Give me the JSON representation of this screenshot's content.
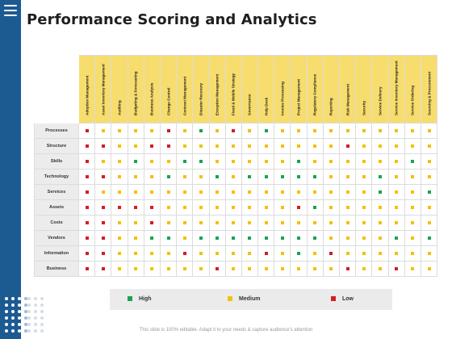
{
  "title": "Performance Scoring and Analytics",
  "columns": [
    "Adoption Management",
    "Asset Inventory Management",
    "Auditing",
    "Budgeting & Forecasting",
    "Business Analysis",
    "Change Control",
    "Contract Management",
    "Disaster Recovery",
    "Exception Management",
    "Fixed & Mobile Strategy",
    "Governance",
    "Help Desk",
    "Invoice Processing",
    "Project Management",
    "Regulatory Compliance",
    "Reporting",
    "Risk Management",
    "Security",
    "Service Delivery",
    "Service Inventory Management",
    "Service Ordering",
    "Sourcing & Procurement"
  ],
  "rows": [
    {
      "label": "Processes",
      "values": [
        "L",
        "M",
        "M",
        "M",
        "M",
        "L",
        "M",
        "H",
        "M",
        "L",
        "M",
        "H",
        "M",
        "M",
        "M",
        "M",
        "M",
        "M",
        "M",
        "M",
        "M",
        "M"
      ]
    },
    {
      "label": "Structure",
      "values": [
        "L",
        "L",
        "M",
        "M",
        "L",
        "L",
        "M",
        "M",
        "M",
        "M",
        "M",
        "M",
        "M",
        "M",
        "M",
        "M",
        "L",
        "M",
        "M",
        "M",
        "M",
        "M"
      ]
    },
    {
      "label": "Skills",
      "values": [
        "L",
        "M",
        "M",
        "H",
        "M",
        "M",
        "H",
        "H",
        "M",
        "M",
        "M",
        "M",
        "M",
        "H",
        "M",
        "M",
        "M",
        "M",
        "M",
        "M",
        "H",
        "M"
      ]
    },
    {
      "label": "Technology",
      "values": [
        "L",
        "L",
        "M",
        "M",
        "M",
        "H",
        "M",
        "M",
        "H",
        "M",
        "H",
        "H",
        "H",
        "H",
        "H",
        "M",
        "M",
        "M",
        "H",
        "M",
        "M",
        "M"
      ]
    },
    {
      "label": "Services",
      "values": [
        "L",
        "M",
        "M",
        "M",
        "M",
        "M",
        "M",
        "M",
        "M",
        "M",
        "M",
        "M",
        "M",
        "M",
        "M",
        "M",
        "M",
        "M",
        "H",
        "M",
        "M",
        "H"
      ]
    },
    {
      "label": "Assets",
      "values": [
        "L",
        "L",
        "L",
        "L",
        "L",
        "M",
        "M",
        "M",
        "M",
        "M",
        "M",
        "M",
        "M",
        "L",
        "H",
        "M",
        "M",
        "M",
        "M",
        "M",
        "M",
        "M"
      ]
    },
    {
      "label": "Costs",
      "values": [
        "L",
        "L",
        "M",
        "M",
        "L",
        "M",
        "M",
        "M",
        "M",
        "M",
        "M",
        "M",
        "M",
        "M",
        "M",
        "M",
        "M",
        "M",
        "M",
        "M",
        "M",
        "M"
      ]
    },
    {
      "label": "Vendors",
      "values": [
        "L",
        "L",
        "M",
        "M",
        "H",
        "H",
        "M",
        "H",
        "H",
        "H",
        "H",
        "H",
        "H",
        "H",
        "H",
        "M",
        "M",
        "M",
        "M",
        "H",
        "M",
        "H"
      ]
    },
    {
      "label": "Information",
      "values": [
        "L",
        "L",
        "M",
        "M",
        "M",
        "M",
        "L",
        "M",
        "M",
        "M",
        "M",
        "L",
        "M",
        "H",
        "M",
        "L",
        "M",
        "M",
        "M",
        "M",
        "M",
        "M"
      ]
    },
    {
      "label": "Business",
      "values": [
        "L",
        "L",
        "M",
        "M",
        "M",
        "M",
        "M",
        "M",
        "L",
        "M",
        "M",
        "M",
        "M",
        "M",
        "M",
        "M",
        "L",
        "M",
        "M",
        "L",
        "M",
        "M"
      ]
    }
  ],
  "legend": [
    {
      "key": "H",
      "label": "High",
      "color": "#1aa351"
    },
    {
      "key": "M",
      "label": "Medium",
      "color": "#f2c10a"
    },
    {
      "key": "L",
      "label": "Low",
      "color": "#d41d24"
    }
  ],
  "footer": "This slide is 100% editable. Adapt it to your needs & capture audience's attention"
}
